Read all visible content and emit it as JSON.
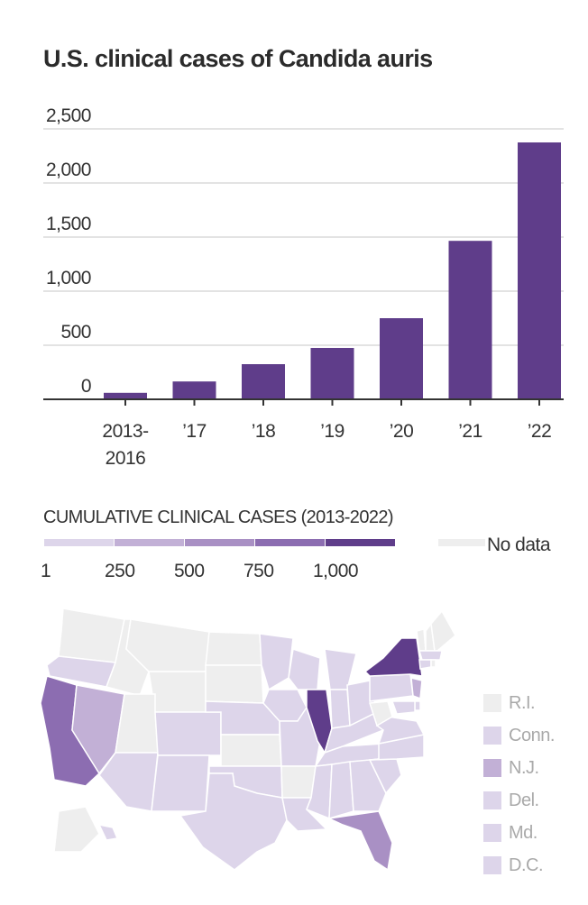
{
  "title": "U.S. clinical cases of Candida auris",
  "chart_data": [
    {
      "type": "bar",
      "title": "U.S. clinical cases of Candida auris",
      "xlabel": "",
      "ylabel": "",
      "categories": [
        "2013-\n2016",
        "’17",
        "’18",
        "’19",
        "’20",
        "’21",
        "’22"
      ],
      "category_lines": [
        [
          "2013-",
          "2016"
        ],
        [
          "’17"
        ],
        [
          "’18"
        ],
        [
          "’19"
        ],
        [
          "’20"
        ],
        [
          "’21"
        ],
        [
          "’22"
        ]
      ],
      "values": [
        60,
        165,
        325,
        475,
        750,
        1465,
        2375
      ],
      "ylim": [
        0,
        2500
      ],
      "yticks": [
        0,
        500,
        1000,
        1500,
        2000,
        2500
      ],
      "ytick_labels": [
        "0",
        "500",
        "1,000",
        "1,500",
        "2,000",
        "2,500"
      ],
      "grid": true,
      "bar_color": "#5f3d8a"
    },
    {
      "type": "heatmap",
      "title": "CUMULATIVE CLINICAL CASES (2013-2022)",
      "legend": {
        "bins": [
          {
            "from": 1,
            "to": 250,
            "color": "#ddd5ea"
          },
          {
            "from": 250,
            "to": 500,
            "color": "#c2b0d6"
          },
          {
            "from": 500,
            "to": 750,
            "color": "#a990c4"
          },
          {
            "from": 750,
            "to": 1000,
            "color": "#8c6db1"
          },
          {
            "from": 1000,
            "to": null,
            "color": "#5f3d8a"
          }
        ],
        "tick_labels": [
          "1",
          "250",
          "500",
          "750",
          "1,000"
        ],
        "no_data_label": "No data",
        "no_data_color": "#eeeeee"
      },
      "states": {
        "no_data": [
          "WA",
          "ID",
          "MT",
          "WY",
          "ND",
          "SD",
          "UT",
          "KS",
          "AR",
          "WV",
          "VT",
          "NH",
          "ME",
          "AK",
          "RI"
        ],
        "bin_1_250": [
          "OR",
          "CO",
          "AZ",
          "NM",
          "TX",
          "OK",
          "NE",
          "MN",
          "IA",
          "MO",
          "WI",
          "MI",
          "IN",
          "OH",
          "KY",
          "TN",
          "MS",
          "AL",
          "GA",
          "SC",
          "NC",
          "VA",
          "PA",
          "LA",
          "MA",
          "CT",
          "DE",
          "MD",
          "DC",
          "HI"
        ],
        "bin_250_500": [
          "NV",
          "NJ"
        ],
        "bin_500_750": [
          "FL"
        ],
        "bin_750_1000": [
          "CA"
        ],
        "bin_1000_plus": [
          "IL",
          "NY"
        ]
      }
    }
  ],
  "map_side_legend": [
    {
      "label": "R.I.",
      "color": "#eeeeee"
    },
    {
      "label": "Conn.",
      "color": "#ddd5ea"
    },
    {
      "label": "N.J.",
      "color": "#c2b0d6"
    },
    {
      "label": "Del.",
      "color": "#ddd5ea"
    },
    {
      "label": "Md.",
      "color": "#ddd5ea"
    },
    {
      "label": "D.C.",
      "color": "#ddd5ea"
    }
  ]
}
